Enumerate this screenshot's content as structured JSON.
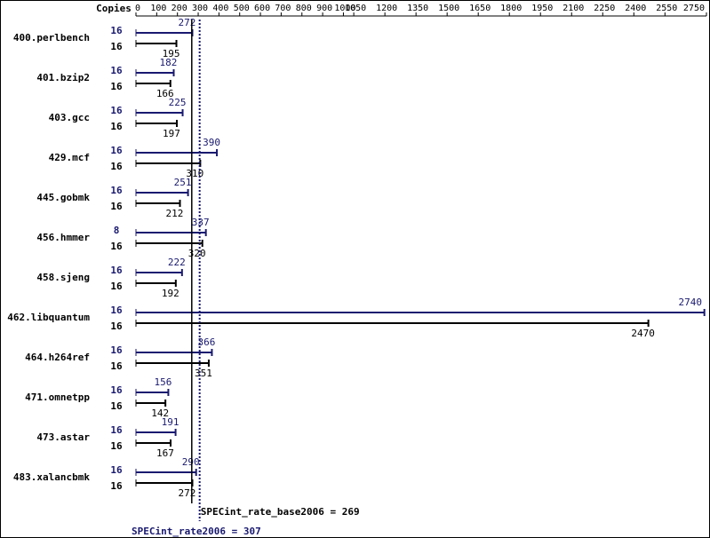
{
  "chart_data": {
    "type": "bar",
    "copies_label": "Copies",
    "categories": [
      "400.perlbench",
      "401.bzip2",
      "403.gcc",
      "429.mcf",
      "445.gobmk",
      "456.hmmer",
      "458.sjeng",
      "462.libquantum",
      "464.h264ref",
      "471.omnetpp",
      "473.astar",
      "483.xalancbmk"
    ],
    "series": [
      {
        "color": "#191970",
        "copies": [
          16,
          16,
          16,
          16,
          16,
          8,
          16,
          16,
          16,
          16,
          16,
          16
        ],
        "values": [
          272,
          182,
          225,
          390,
          251,
          337,
          222,
          2740,
          366,
          156,
          191,
          290
        ]
      },
      {
        "color": "#000000",
        "copies": [
          16,
          16,
          16,
          16,
          16,
          16,
          16,
          16,
          16,
          16,
          16,
          16
        ],
        "values": [
          195,
          166,
          197,
          310,
          212,
          320,
          192,
          2470,
          351,
          142,
          167,
          272
        ]
      }
    ],
    "xlim": [
      0,
      2750
    ],
    "xticks": [
      0,
      100,
      200,
      300,
      400,
      500,
      600,
      700,
      800,
      900,
      1000,
      1050,
      1200,
      1350,
      1500,
      1650,
      1800,
      1950,
      2100,
      2250,
      2400,
      2550,
      2750
    ],
    "reference_lines": [
      {
        "value": 269,
        "label": "SPECint_rate_base2006 = 269",
        "color": "#000000",
        "style": "solid"
      },
      {
        "value": 307,
        "label": "SPECint_rate2006 = 307",
        "color": "#191970",
        "style": "dotted"
      }
    ]
  }
}
